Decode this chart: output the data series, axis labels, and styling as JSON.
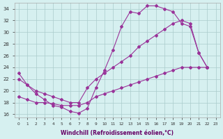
{
  "background_color": "#d6f0f0",
  "line_color": "#993399",
  "grid_color": "#aacccc",
  "ylim": [
    15.5,
    35.0
  ],
  "xlim": [
    -0.5,
    23.5
  ],
  "yticks": [
    16,
    18,
    20,
    22,
    24,
    26,
    28,
    30,
    32,
    34
  ],
  "xticks": [
    0,
    1,
    2,
    3,
    4,
    5,
    6,
    7,
    8,
    9,
    10,
    11,
    12,
    13,
    14,
    15,
    16,
    17,
    18,
    19,
    20,
    21,
    22,
    23
  ],
  "xlabel": "Windchill (Refroidissement éolien,°C)",
  "curve1": [
    23.0,
    21.0,
    19.5,
    18.5,
    17.5,
    17.2,
    16.5,
    16.2,
    17.0,
    20.5,
    23.5,
    27.0,
    31.0,
    33.5,
    33.2,
    34.5,
    34.5,
    34.0,
    33.5,
    31.5,
    31.0,
    26.5,
    24.0,
    null
  ],
  "curve2": [
    22.0,
    21.0,
    20.0,
    19.5,
    19.0,
    18.5,
    18.0,
    18.0,
    20.5,
    22.0,
    23.0,
    24.0,
    25.0,
    26.0,
    27.5,
    28.5,
    29.5,
    30.5,
    31.5,
    32.0,
    31.5,
    26.5,
    24.0,
    null
  ],
  "curve3": [
    19.0,
    18.5,
    18.0,
    18.0,
    17.8,
    17.5,
    17.5,
    17.5,
    18.0,
    19.0,
    19.5,
    20.0,
    20.5,
    21.0,
    21.5,
    22.0,
    22.5,
    23.0,
    23.5,
    24.0,
    24.0,
    24.0,
    24.0,
    null
  ]
}
